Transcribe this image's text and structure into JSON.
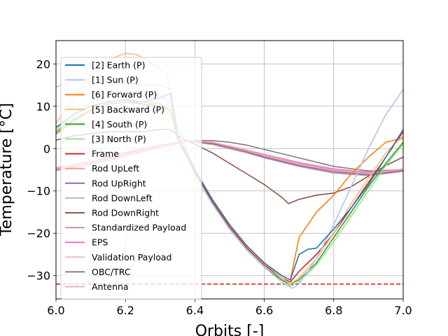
{
  "chart_data": {
    "type": "line",
    "xlabel": "Orbits [-]",
    "ylabel": "Temperature [°C]",
    "xlim": [
      6.0,
      7.0
    ],
    "ylim": [
      -35.5,
      25.5
    ],
    "xticks": [
      "6.0",
      "6.2",
      "6.4",
      "6.6",
      "6.8",
      "7.0"
    ],
    "yticks": [
      "−30",
      "−20",
      "−10",
      "0",
      "10",
      "20"
    ],
    "grid": true,
    "legend_position": "upper-left",
    "reference_line": {
      "y": -32,
      "color": "#d62728",
      "style": "dashed"
    },
    "series": [
      {
        "name": "[2] Earth (P)",
        "color": "#1f77b4",
        "points": [
          [
            6.0,
            5
          ],
          [
            6.05,
            8
          ],
          [
            6.1,
            10
          ],
          [
            6.15,
            11
          ],
          [
            6.2,
            11.5
          ],
          [
            6.25,
            11
          ],
          [
            6.3,
            12
          ],
          [
            6.33,
            13
          ],
          [
            6.35,
            3
          ],
          [
            6.4,
            -5
          ],
          [
            6.45,
            -12
          ],
          [
            6.5,
            -18
          ],
          [
            6.55,
            -23
          ],
          [
            6.6,
            -27
          ],
          [
            6.65,
            -30
          ],
          [
            6.675,
            -31
          ],
          [
            6.7,
            -25
          ],
          [
            6.725,
            -23.8
          ],
          [
            6.75,
            -23.5
          ],
          [
            6.8,
            -19
          ],
          [
            6.85,
            -14
          ],
          [
            6.9,
            -8.5
          ],
          [
            6.95,
            -2
          ],
          [
            7.0,
            4.5
          ]
        ]
      },
      {
        "name": "[1] Sun (P)",
        "color": "#aec7e8",
        "points": [
          [
            6.0,
            14.5
          ],
          [
            6.05,
            16
          ],
          [
            6.1,
            16.5
          ],
          [
            6.15,
            16
          ],
          [
            6.2,
            15.5
          ],
          [
            6.25,
            15
          ],
          [
            6.3,
            15
          ],
          [
            6.33,
            14
          ],
          [
            6.35,
            2
          ],
          [
            6.4,
            -6
          ],
          [
            6.45,
            -13
          ],
          [
            6.5,
            -19
          ],
          [
            6.55,
            -24
          ],
          [
            6.6,
            -28
          ],
          [
            6.65,
            -31.5
          ],
          [
            6.68,
            -33
          ],
          [
            6.7,
            -32
          ],
          [
            6.75,
            -26
          ],
          [
            6.8,
            -18
          ],
          [
            6.85,
            -9
          ],
          [
            6.9,
            0
          ],
          [
            6.95,
            8
          ],
          [
            7.0,
            14
          ]
        ]
      },
      {
        "name": "[6] Forward (P)",
        "color": "#ff7f0e",
        "points": [
          [
            6.0,
            4
          ],
          [
            6.05,
            7
          ],
          [
            6.1,
            9
          ],
          [
            6.15,
            10.5
          ],
          [
            6.2,
            11
          ],
          [
            6.25,
            11
          ],
          [
            6.3,
            10.5
          ],
          [
            6.33,
            9
          ],
          [
            6.35,
            2
          ],
          [
            6.4,
            -5
          ],
          [
            6.45,
            -12
          ],
          [
            6.5,
            -18
          ],
          [
            6.55,
            -23
          ],
          [
            6.6,
            -27
          ],
          [
            6.65,
            -30
          ],
          [
            6.675,
            -31
          ],
          [
            6.7,
            -21
          ],
          [
            6.75,
            -15
          ],
          [
            6.8,
            -11
          ],
          [
            6.85,
            -6
          ],
          [
            6.9,
            -2
          ],
          [
            6.95,
            1.5
          ],
          [
            7.0,
            2.5
          ]
        ]
      },
      {
        "name": "[5] Backward (P)",
        "color": "#ffbb78",
        "points": [
          [
            6.0,
            6
          ],
          [
            6.05,
            12
          ],
          [
            6.1,
            17
          ],
          [
            6.15,
            21
          ],
          [
            6.2,
            22.5
          ],
          [
            6.23,
            22.3
          ],
          [
            6.27,
            20.5
          ],
          [
            6.32,
            17.5
          ],
          [
            6.35,
            5
          ],
          [
            6.4,
            -5
          ],
          [
            6.45,
            -12
          ],
          [
            6.5,
            -18
          ],
          [
            6.55,
            -23
          ],
          [
            6.6,
            -27
          ],
          [
            6.65,
            -30.5
          ],
          [
            6.675,
            -32
          ],
          [
            6.7,
            -30.5
          ],
          [
            6.75,
            -26
          ],
          [
            6.8,
            -20
          ],
          [
            6.85,
            -13
          ],
          [
            6.9,
            -7
          ],
          [
            6.95,
            -1
          ],
          [
            7.0,
            3
          ]
        ]
      },
      {
        "name": "[4] South (P)",
        "color": "#2ca02c",
        "points": [
          [
            6.0,
            3.5
          ],
          [
            6.05,
            6.5
          ],
          [
            6.1,
            9
          ],
          [
            6.15,
            10.5
          ],
          [
            6.2,
            11
          ],
          [
            6.25,
            10.5
          ],
          [
            6.3,
            10
          ],
          [
            6.33,
            9
          ],
          [
            6.35,
            2
          ],
          [
            6.4,
            -6
          ],
          [
            6.45,
            -13
          ],
          [
            6.5,
            -19
          ],
          [
            6.55,
            -24
          ],
          [
            6.6,
            -28
          ],
          [
            6.65,
            -31
          ],
          [
            6.675,
            -32
          ],
          [
            6.7,
            -31
          ],
          [
            6.75,
            -27
          ],
          [
            6.8,
            -21
          ],
          [
            6.85,
            -15
          ],
          [
            6.9,
            -9
          ],
          [
            6.95,
            -3.5
          ],
          [
            7.0,
            1.5
          ]
        ]
      },
      {
        "name": "[3] North (P)",
        "color": "#98df8a",
        "points": [
          [
            6.0,
            4.5
          ],
          [
            6.05,
            8
          ],
          [
            6.1,
            11
          ],
          [
            6.15,
            12.5
          ],
          [
            6.2,
            13.5
          ],
          [
            6.25,
            13
          ],
          [
            6.3,
            12.5
          ],
          [
            6.33,
            11
          ],
          [
            6.35,
            3
          ],
          [
            6.4,
            -6
          ],
          [
            6.45,
            -13
          ],
          [
            6.5,
            -19
          ],
          [
            6.55,
            -24
          ],
          [
            6.6,
            -28
          ],
          [
            6.65,
            -31
          ],
          [
            6.675,
            -32.5
          ],
          [
            6.7,
            -31.5
          ],
          [
            6.75,
            -27.5
          ],
          [
            6.8,
            -22
          ],
          [
            6.85,
            -16
          ],
          [
            6.9,
            -10
          ],
          [
            6.95,
            -4
          ],
          [
            7.0,
            1
          ]
        ]
      },
      {
        "name": "Frame",
        "color": "#d62728",
        "points": [
          [
            6.0,
            4
          ],
          [
            6.05,
            7
          ],
          [
            6.1,
            9
          ],
          [
            6.15,
            10.5
          ],
          [
            6.2,
            11
          ],
          [
            6.25,
            10.5
          ],
          [
            6.3,
            10
          ],
          [
            6.33,
            9
          ],
          [
            6.35,
            2
          ],
          [
            6.4,
            -5.5
          ],
          [
            6.45,
            -12.5
          ],
          [
            6.5,
            -18.5
          ],
          [
            6.55,
            -23.5
          ],
          [
            6.6,
            -27.5
          ],
          [
            6.65,
            -30.5
          ],
          [
            6.675,
            -31.5
          ],
          [
            6.7,
            -29
          ],
          [
            6.75,
            -25
          ],
          [
            6.8,
            -20
          ],
          [
            6.85,
            -14
          ],
          [
            6.9,
            -8
          ],
          [
            6.95,
            -2
          ],
          [
            7.0,
            4
          ]
        ]
      },
      {
        "name": "Rod UpLeft",
        "color": "#ff9896",
        "points": [
          [
            6.0,
            -5
          ],
          [
            6.1,
            -3.5
          ],
          [
            6.2,
            -1.5
          ],
          [
            6.3,
            0.5
          ],
          [
            6.38,
            1.8
          ],
          [
            6.45,
            1.5
          ],
          [
            6.5,
            0.5
          ],
          [
            6.55,
            -0.5
          ],
          [
            6.6,
            -1.5
          ],
          [
            6.7,
            -3.5
          ],
          [
            6.8,
            -5
          ],
          [
            6.9,
            -5.8
          ],
          [
            7.0,
            -5
          ]
        ]
      },
      {
        "name": "Rod UpRight",
        "color": "#9467bd",
        "points": [
          [
            6.0,
            -5
          ],
          [
            6.1,
            -3.5
          ],
          [
            6.2,
            -1.5
          ],
          [
            6.3,
            0.5
          ],
          [
            6.38,
            1.8
          ],
          [
            6.45,
            1.2
          ],
          [
            6.5,
            0.2
          ],
          [
            6.55,
            -0.8
          ],
          [
            6.6,
            -2
          ],
          [
            6.7,
            -4
          ],
          [
            6.8,
            -5.5
          ],
          [
            6.9,
            -6.2
          ],
          [
            7.0,
            -5.2
          ]
        ]
      },
      {
        "name": "Rod DownLeft",
        "color": "#c5b0d5",
        "points": [
          [
            6.0,
            -5
          ],
          [
            6.1,
            -3.5
          ],
          [
            6.2,
            -1.5
          ],
          [
            6.3,
            0.5
          ],
          [
            6.38,
            1.8
          ],
          [
            6.45,
            1.3
          ],
          [
            6.5,
            0.3
          ],
          [
            6.55,
            -0.7
          ],
          [
            6.6,
            -1.8
          ],
          [
            6.7,
            -3.8
          ],
          [
            6.8,
            -5.3
          ],
          [
            6.9,
            -6
          ],
          [
            7.0,
            -5.1
          ]
        ]
      },
      {
        "name": "Rod DownRight",
        "color": "#8c564b",
        "points": [
          [
            6.0,
            2
          ],
          [
            6.05,
            3
          ],
          [
            6.1,
            3.5
          ],
          [
            6.15,
            4
          ],
          [
            6.2,
            4
          ],
          [
            6.25,
            4
          ],
          [
            6.3,
            4.5
          ],
          [
            6.33,
            4.5
          ],
          [
            6.36,
            2.5
          ],
          [
            6.4,
            1
          ],
          [
            6.45,
            -1
          ],
          [
            6.5,
            -3.5
          ],
          [
            6.55,
            -6
          ],
          [
            6.6,
            -8.5
          ],
          [
            6.65,
            -11.5
          ],
          [
            6.67,
            -13
          ],
          [
            6.7,
            -12
          ],
          [
            6.75,
            -11
          ],
          [
            6.8,
            -10.5
          ],
          [
            6.85,
            -9
          ],
          [
            6.9,
            -6.5
          ],
          [
            6.95,
            -4
          ],
          [
            7.0,
            -2
          ]
        ]
      },
      {
        "name": "Standardized Payload",
        "color": "#c49c94",
        "points": [
          [
            6.0,
            -5.2
          ],
          [
            6.1,
            -3.8
          ],
          [
            6.2,
            -1.8
          ],
          [
            6.3,
            0.3
          ],
          [
            6.38,
            1.6
          ],
          [
            6.45,
            1
          ],
          [
            6.5,
            0
          ],
          [
            6.55,
            -1
          ],
          [
            6.6,
            -2.2
          ],
          [
            6.7,
            -4.2
          ],
          [
            6.8,
            -5.8
          ],
          [
            6.9,
            -6.4
          ],
          [
            7.0,
            -5.4
          ]
        ]
      },
      {
        "name": "EPS",
        "color": "#e377c2",
        "points": [
          [
            6.0,
            -4.8
          ],
          [
            6.1,
            -3.2
          ],
          [
            6.2,
            -1.2
          ],
          [
            6.3,
            0.8
          ],
          [
            6.38,
            1.9
          ],
          [
            6.45,
            1.4
          ],
          [
            6.5,
            0.6
          ],
          [
            6.55,
            -0.4
          ],
          [
            6.6,
            -1.4
          ],
          [
            6.7,
            -3.3
          ],
          [
            6.8,
            -4.8
          ],
          [
            6.9,
            -5.6
          ],
          [
            7.0,
            -4.9
          ]
        ]
      },
      {
        "name": "Validation Payload",
        "color": "#f7b6d2",
        "points": [
          [
            6.0,
            -5
          ],
          [
            6.1,
            -3.4
          ],
          [
            6.2,
            -1.4
          ],
          [
            6.3,
            0.6
          ],
          [
            6.38,
            1.8
          ],
          [
            6.45,
            1.2
          ],
          [
            6.5,
            0.3
          ],
          [
            6.55,
            -0.6
          ],
          [
            6.6,
            -1.6
          ],
          [
            6.7,
            -3.6
          ],
          [
            6.8,
            -5.1
          ],
          [
            6.9,
            -5.9
          ],
          [
            7.0,
            -5
          ]
        ]
      },
      {
        "name": "OBC/TRC",
        "color": "#7f7f7f",
        "points": [
          [
            6.0,
            -5
          ],
          [
            6.1,
            -3.2
          ],
          [
            6.2,
            -1
          ],
          [
            6.3,
            0.8
          ],
          [
            6.4,
            1.9
          ],
          [
            6.45,
            1.9
          ],
          [
            6.5,
            1.5
          ],
          [
            6.55,
            0.8
          ],
          [
            6.6,
            -0.2
          ],
          [
            6.7,
            -2.2
          ],
          [
            6.8,
            -4.2
          ],
          [
            6.9,
            -5.3
          ],
          [
            7.0,
            -5
          ]
        ]
      },
      {
        "name": "Antenna",
        "color": "#dbb6bd",
        "points": [
          [
            6.0,
            -4.5
          ],
          [
            6.1,
            -3
          ],
          [
            6.2,
            -1
          ],
          [
            6.3,
            0.8
          ],
          [
            6.38,
            1.9
          ],
          [
            6.45,
            1.3
          ],
          [
            6.5,
            0.4
          ],
          [
            6.55,
            -0.6
          ],
          [
            6.6,
            -1.6
          ],
          [
            6.7,
            -3.6
          ],
          [
            6.8,
            -5.2
          ],
          [
            6.9,
            -6
          ],
          [
            7.0,
            -5.2
          ]
        ]
      }
    ]
  }
}
